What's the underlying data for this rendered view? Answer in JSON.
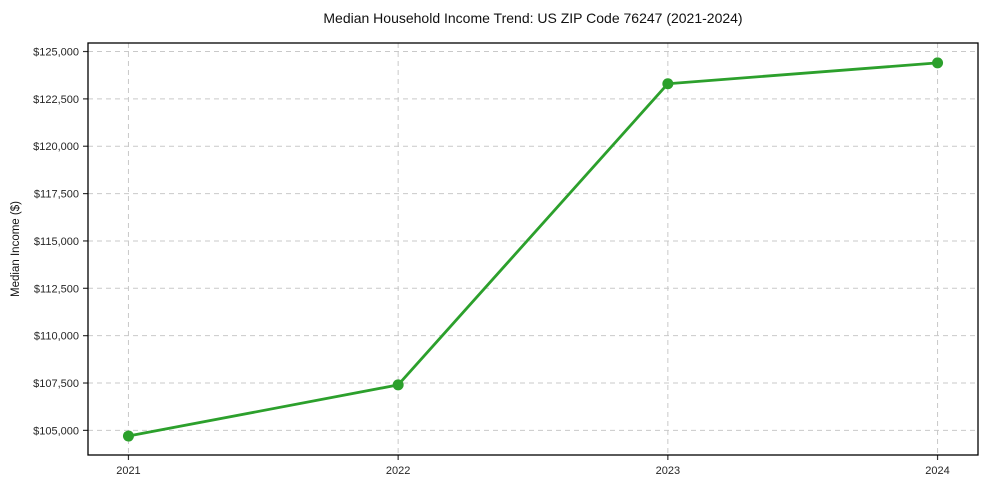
{
  "chart_data": {
    "type": "line",
    "title": "Median Household Income Trend: US ZIP Code 76247 (2021-2024)",
    "xlabel": "",
    "ylabel": "Median Income ($)",
    "x": [
      2021,
      2022,
      2023,
      2024
    ],
    "series": [
      {
        "name": "Median Household Income",
        "values": [
          104700,
          107400,
          123300,
          124400
        ]
      }
    ],
    "xlim": [
      2020.85,
      2024.15
    ],
    "ylim": [
      103700,
      125450
    ],
    "xticks": {
      "values": [
        2021,
        2022,
        2023,
        2024
      ],
      "labels": [
        "2021",
        "2022",
        "2023",
        "2024"
      ]
    },
    "yticks": {
      "values": [
        105000,
        107500,
        110000,
        112500,
        115000,
        117500,
        120000,
        122500,
        125000
      ],
      "labels": [
        "$105,000",
        "$107,500",
        "$110,000",
        "$112,500",
        "$115,000",
        "$117,500",
        "$120,000",
        "$122,500",
        "$125,000"
      ]
    },
    "grid": true,
    "grid_style": "dashed",
    "legend": "none",
    "colors": {
      "line": "#2ca02c",
      "marker": "#2ca02c",
      "grid": "#c9c9c9",
      "spine": "#000000",
      "tick": "#333333",
      "background": "#ffffff"
    }
  }
}
